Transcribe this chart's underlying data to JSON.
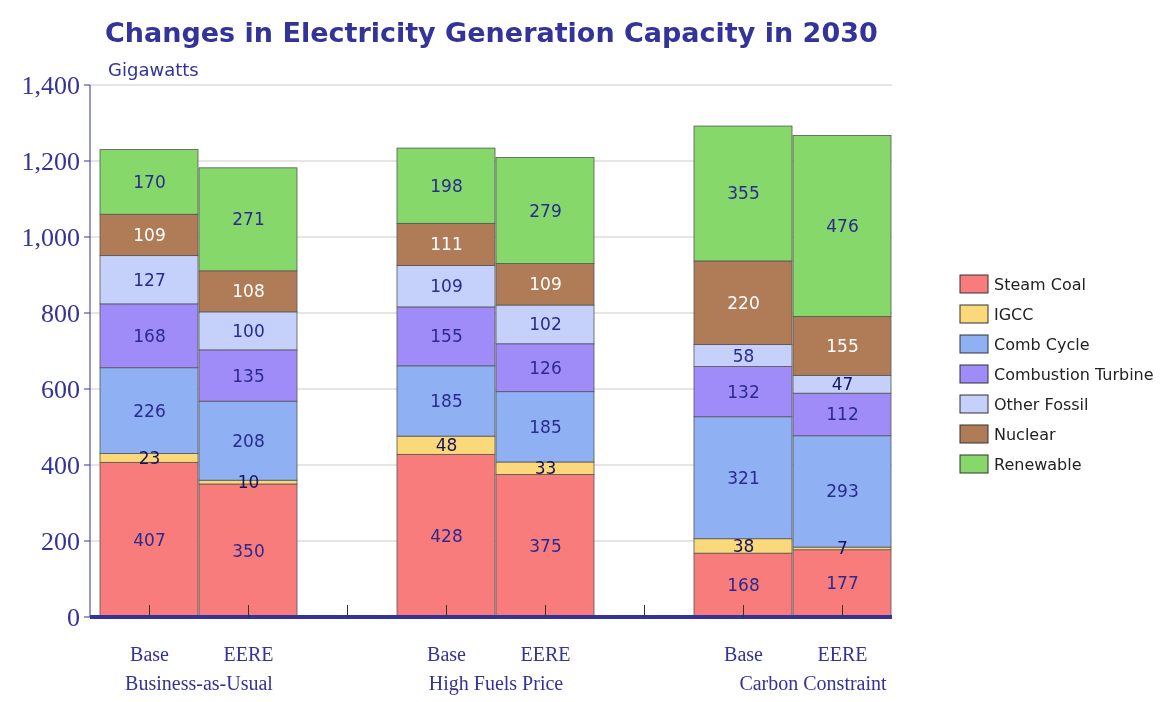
{
  "chart_data": {
    "type": "bar",
    "title": "Changes in Electricity Generation Capacity in 2030",
    "ylabel": "Gigawatts",
    "categories": [
      "Base",
      "EERE",
      "Base",
      "EERE",
      "Base",
      "EERE"
    ],
    "annotations": [
      "Business-as-Usual",
      "High Fuels Price",
      "Carbon Constraint"
    ],
    "stacked": true,
    "data_labels": true,
    "grid": "y",
    "legend": "right",
    "ylim": [
      0,
      1400
    ],
    "yticks": [
      0,
      200,
      400,
      600,
      800,
      {
        "value": 1000,
        "label": "1,000"
      },
      {
        "value": 1200,
        "label": "1,200"
      },
      {
        "value": 1400,
        "label": "1,400"
      }
    ],
    "series": [
      {
        "name": "Steam Coal",
        "color": "#f97c7c",
        "values": [
          407,
          350,
          428,
          375,
          168,
          177
        ]
      },
      {
        "name": "IGCC",
        "color": "#fbd87a",
        "values": [
          23,
          10,
          48,
          33,
          38,
          7
        ]
      },
      {
        "name": "Comb Cycle",
        "color": "#8fb0f3",
        "values": [
          226,
          208,
          185,
          185,
          321,
          293
        ]
      },
      {
        "name": "Combustion Turbine",
        "color": "#a08cf8",
        "values": [
          168,
          135,
          155,
          126,
          132,
          112
        ]
      },
      {
        "name": "Other Fossil",
        "color": "#c5d0fb",
        "values": [
          127,
          100,
          109,
          102,
          58,
          47
        ]
      },
      {
        "name": "Nuclear",
        "color": "#b07c58",
        "values": [
          109,
          108,
          111,
          109,
          220,
          155
        ]
      },
      {
        "name": "Renewable",
        "color": "#86d86a",
        "values": [
          170,
          271,
          198,
          279,
          355,
          476
        ]
      }
    ]
  }
}
